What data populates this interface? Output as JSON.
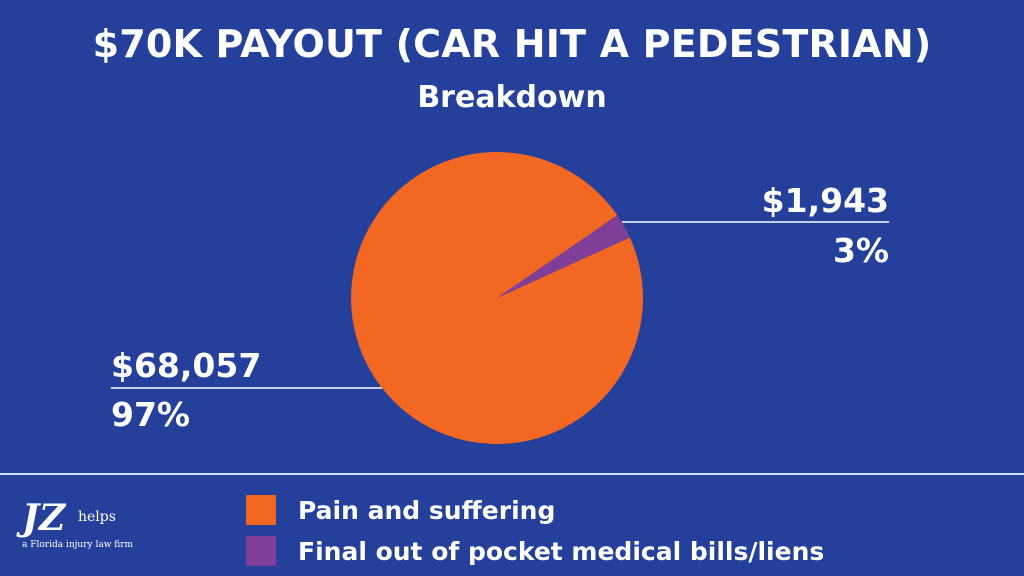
{
  "title": "$70K PAYOUT (CAR HIT A PEDESTRIAN)",
  "subtitle": "Breakdown",
  "colors": {
    "background": "#24409a",
    "pain": "#f26722",
    "medical": "#7f3f98",
    "text": "#ffffff"
  },
  "chart_data": {
    "type": "pie",
    "title": "$70K PAYOUT (CAR HIT A PEDESTRIAN)",
    "subtitle": "Breakdown",
    "slices": [
      {
        "name": "Pain and suffering",
        "value": 68057,
        "value_label": "$68,057",
        "percent_label": "97%",
        "color": "#f26722"
      },
      {
        "name": "Final out of pocket medical bills/liens",
        "value": 1943,
        "value_label": "$1,943",
        "percent_label": "3%",
        "color": "#7f3f98"
      }
    ],
    "legend_position": "bottom"
  },
  "logo": {
    "brand": "JZ",
    "suffix": "helps",
    "tagline": "a Florida injury law firm"
  }
}
